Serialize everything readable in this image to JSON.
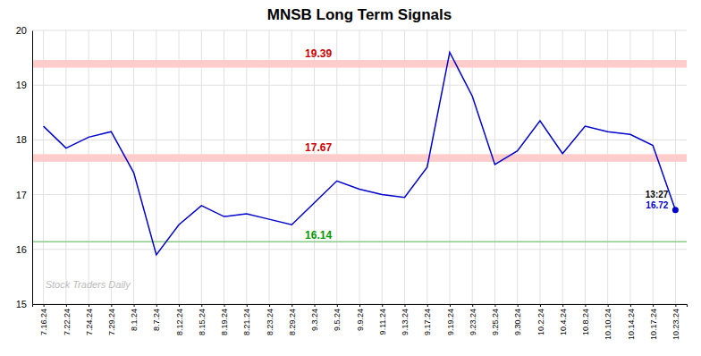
{
  "chart_data": {
    "type": "line",
    "title": "MNSB Long Term Signals",
    "categories": [
      "7.16.24",
      "7.22.24",
      "7.24.24",
      "7.29.24",
      "8.1.24",
      "8.7.24",
      "8.12.24",
      "8.15.24",
      "8.19.24",
      "8.21.24",
      "8.23.24",
      "8.29.24",
      "9.3.24",
      "9.5.24",
      "9.9.24",
      "9.11.24",
      "9.13.24",
      "9.17.24",
      "9.19.24",
      "9.23.24",
      "9.25.24",
      "9.30.24",
      "10.2.24",
      "10.4.24",
      "10.8.24",
      "10.10.24",
      "10.14.24",
      "10.17.24",
      "10.23.24"
    ],
    "values": [
      18.25,
      17.85,
      18.05,
      18.15,
      17.4,
      15.9,
      16.45,
      16.8,
      16.6,
      16.65,
      16.55,
      16.45,
      16.85,
      17.25,
      17.1,
      17.0,
      16.95,
      17.5,
      19.6,
      18.8,
      17.55,
      17.8,
      18.35,
      17.75,
      18.25,
      18.15,
      18.1,
      17.9,
      16.72
    ],
    "color": "#0000cc",
    "ylim": [
      15,
      20
    ],
    "yticks": [
      15,
      16,
      17,
      18,
      19,
      20
    ],
    "grid": true,
    "hlines": [
      {
        "value": 19.39,
        "band": 0.07,
        "color": "#ffcccc",
        "label_color": "#cc0000"
      },
      {
        "value": 17.67,
        "band": 0.07,
        "color": "#ffcccc",
        "label_color": "#cc0000"
      },
      {
        "value": 16.14,
        "color": "#88cc88",
        "label_color": "#009900"
      }
    ],
    "annotations": [
      {
        "text": "13:27",
        "color": "#000000"
      },
      {
        "text": "16.72",
        "color": "#0000cc"
      }
    ],
    "watermark": "Stock Traders Daily"
  }
}
